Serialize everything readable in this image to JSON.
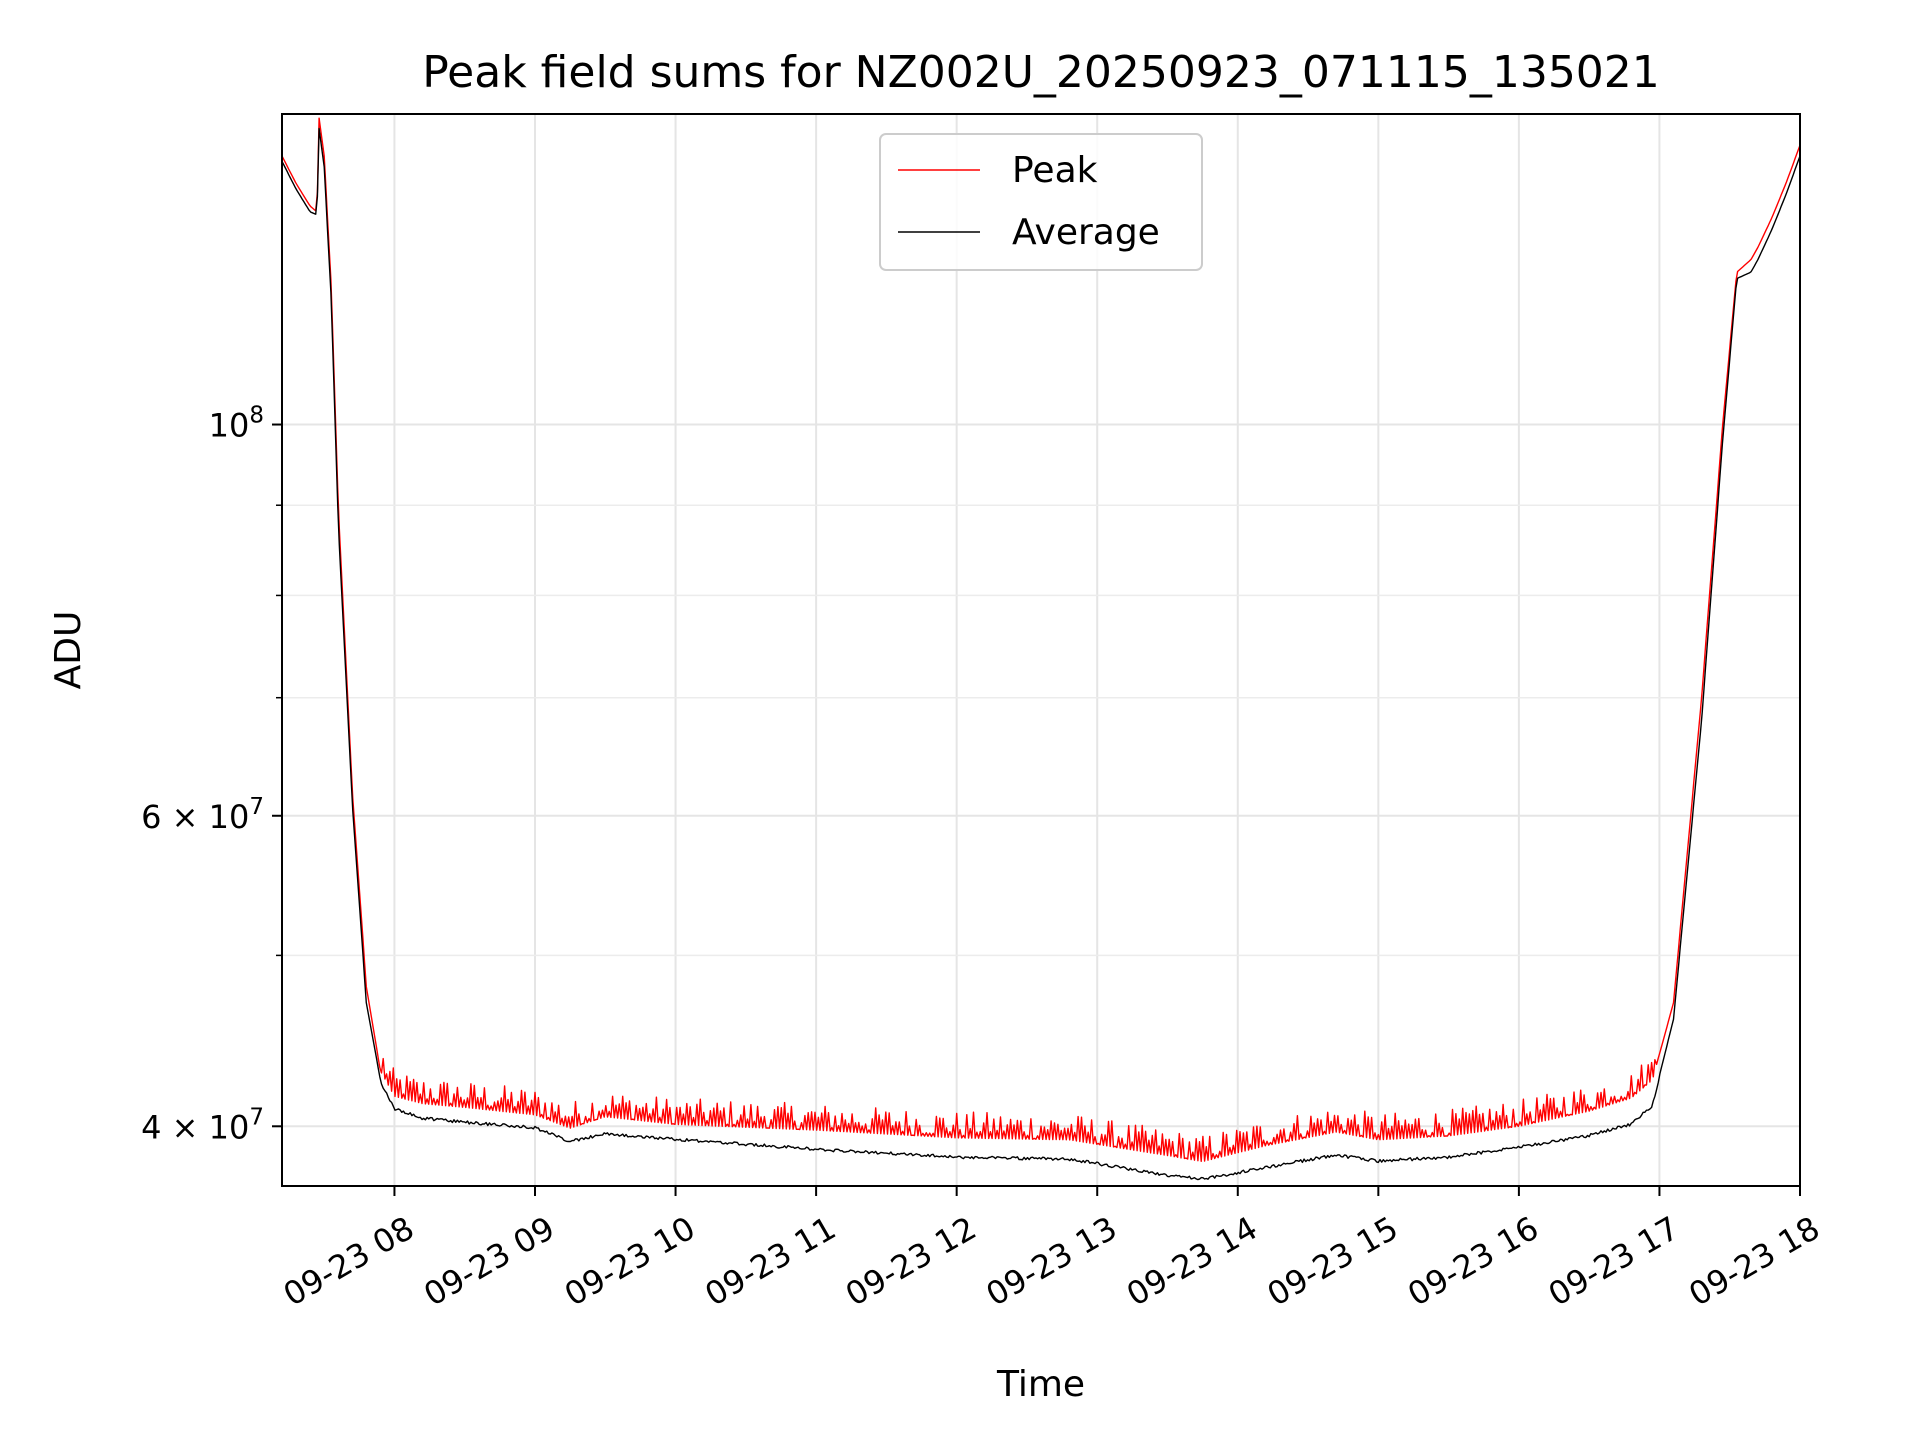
{
  "chart_data": {
    "type": "line",
    "title": "Peak field sums for NZ002U_20250923_071115_135021",
    "xlabel": "Time",
    "ylabel": "ADU",
    "yscale": "log",
    "xlim": [
      7.2,
      18.0
    ],
    "ylim": [
      37000000,
      150000000
    ],
    "x_ticks": [
      {
        "v": 8,
        "label": "09-23 08"
      },
      {
        "v": 9,
        "label": "09-23 09"
      },
      {
        "v": 10,
        "label": "09-23 10"
      },
      {
        "v": 11,
        "label": "09-23 11"
      },
      {
        "v": 12,
        "label": "09-23 12"
      },
      {
        "v": 13,
        "label": "09-23 13"
      },
      {
        "v": 14,
        "label": "09-23 14"
      },
      {
        "v": 15,
        "label": "09-23 15"
      },
      {
        "v": 16,
        "label": "09-23 16"
      },
      {
        "v": 17,
        "label": "09-23 17"
      },
      {
        "v": 18,
        "label": "09-23 18"
      }
    ],
    "y_major_ticks": [
      {
        "v": 100000000,
        "base": "10",
        "exp": "8",
        "mant": ""
      },
      {
        "v": 60000000,
        "base": "10",
        "exp": "7",
        "mant": "6"
      },
      {
        "v": 40000000,
        "base": "10",
        "exp": "7",
        "mant": "4"
      }
    ],
    "y_minor_ticks": [
      50000000,
      70000000,
      80000000,
      90000000
    ],
    "legend": {
      "location": "upper center",
      "entries": [
        "Peak",
        "Average"
      ]
    },
    "grid": true,
    "colors": {
      "Peak": "#ff0000",
      "Average": "#000000"
    },
    "series": [
      {
        "name": "Peak",
        "x": [
          7.2,
          7.3,
          7.4,
          7.45,
          7.46,
          7.5,
          7.55,
          7.6,
          7.7,
          7.8,
          7.9,
          8.0,
          8.2,
          8.5,
          9.0,
          9.25,
          9.5,
          10.0,
          11.0,
          12.0,
          12.8,
          13.5,
          13.75,
          14.2,
          14.7,
          15.0,
          15.5,
          16.0,
          16.5,
          16.8,
          16.95,
          17.1,
          17.3,
          17.45,
          17.55,
          17.65,
          17.7,
          17.8,
          17.9,
          18.0
        ],
        "y": [
          142000000,
          137000000,
          133000000,
          132000000,
          150000000,
          142000000,
          120000000,
          90000000,
          62000000,
          48000000,
          43000000,
          41600000,
          41200000,
          41000000,
          40600000,
          39900000,
          40500000,
          40100000,
          39800000,
          39400000,
          39300000,
          38500000,
          38200000,
          39000000,
          39700000,
          39300000,
          39500000,
          40000000,
          40800000,
          41500000,
          42500000,
          47000000,
          70000000,
          100000000,
          122000000,
          124000000,
          126000000,
          131000000,
          137000000,
          144000000
        ]
      },
      {
        "name": "Average",
        "x": [
          7.2,
          7.3,
          7.4,
          7.45,
          7.46,
          7.5,
          7.55,
          7.6,
          7.7,
          7.8,
          7.9,
          8.0,
          8.2,
          8.5,
          9.0,
          9.25,
          9.5,
          10.0,
          11.0,
          12.0,
          12.8,
          13.5,
          13.75,
          14.2,
          14.7,
          15.0,
          15.5,
          16.0,
          16.5,
          16.8,
          16.95,
          17.1,
          17.3,
          17.45,
          17.55,
          17.65,
          17.7,
          17.8,
          17.9,
          18.0
        ],
        "y": [
          141000000,
          136000000,
          132000000,
          131500000,
          148000000,
          140000000,
          118000000,
          88000000,
          61000000,
          47000000,
          42500000,
          41000000,
          40500000,
          40300000,
          40000000,
          39300000,
          39700000,
          39400000,
          38900000,
          38500000,
          38400000,
          37600000,
          37400000,
          38000000,
          38600000,
          38300000,
          38500000,
          39000000,
          39600000,
          40200000,
          41200000,
          46000000,
          68000000,
          98000000,
          121000000,
          122000000,
          124000000,
          129000000,
          135000000,
          142000000
        ]
      }
    ]
  }
}
